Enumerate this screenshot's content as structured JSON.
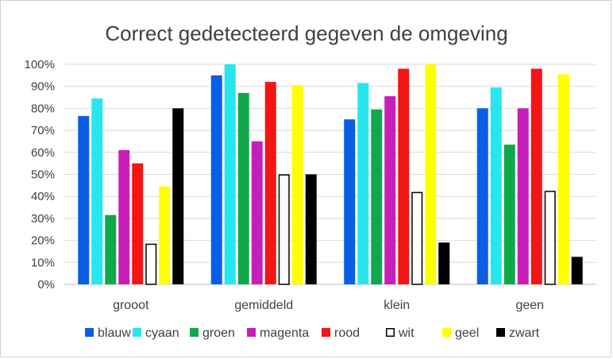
{
  "chart_data": {
    "type": "bar",
    "title": "Correct gedetecteerd gegeven de omgeving",
    "xlabel": "",
    "ylabel": "",
    "ylim": [
      0,
      100
    ],
    "y_ticks": [
      "0%",
      "10%",
      "20%",
      "30%",
      "40%",
      "50%",
      "60%",
      "70%",
      "80%",
      "90%",
      "100%"
    ],
    "grid": true,
    "legend_position": "bottom",
    "categories": [
      "grooot",
      "gemiddeld",
      "klein",
      "geen"
    ],
    "series": [
      {
        "name": "blauw",
        "color": "#0a5ee6",
        "outline": false,
        "values": [
          76.5,
          95,
          75,
          80
        ]
      },
      {
        "name": "cyaan",
        "color": "#27e6ee",
        "outline": false,
        "values": [
          84.5,
          100,
          91.5,
          89.5
        ]
      },
      {
        "name": "groen",
        "color": "#0fa84b",
        "outline": false,
        "values": [
          31.5,
          87,
          79.5,
          63.5
        ]
      },
      {
        "name": "magenta",
        "color": "#c81eb9",
        "outline": false,
        "values": [
          61,
          65,
          85.5,
          80
        ]
      },
      {
        "name": "rood",
        "color": "#f51414",
        "outline": false,
        "values": [
          55,
          92,
          98,
          98
        ]
      },
      {
        "name": "wit",
        "color": "#ffffff",
        "outline": true,
        "values": [
          18.5,
          50,
          42,
          42.5
        ]
      },
      {
        "name": "geel",
        "color": "#ffff00",
        "outline": false,
        "values": [
          44.5,
          90.5,
          100,
          95.5
        ]
      },
      {
        "name": "zwart",
        "color": "#000000",
        "outline": false,
        "values": [
          80,
          50,
          19,
          12.5
        ]
      }
    ]
  }
}
